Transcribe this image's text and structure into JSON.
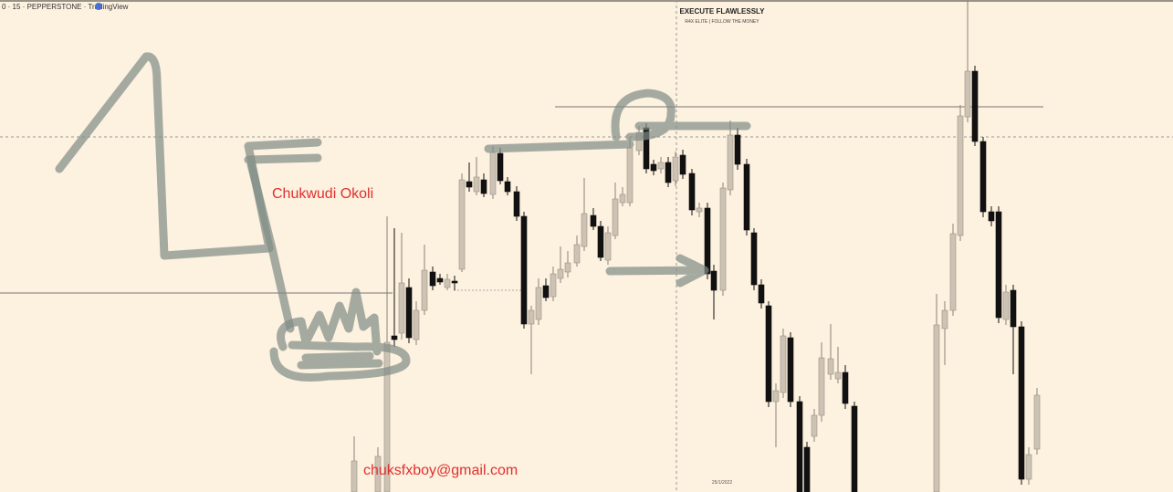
{
  "header": {
    "symbol_line": "0 · 15 · PEPPERSTONE · TradingView"
  },
  "watermark": {
    "title": "EXECUTE FLAWLESSLY",
    "subtitle": "R4X ELITE | FOLLOW THE MONEY"
  },
  "annotations": {
    "name": "Chukwudi Okoli",
    "email": "chuksfxboy@gmail.com"
  },
  "footer": {
    "date": "25/1/2022"
  }
}
